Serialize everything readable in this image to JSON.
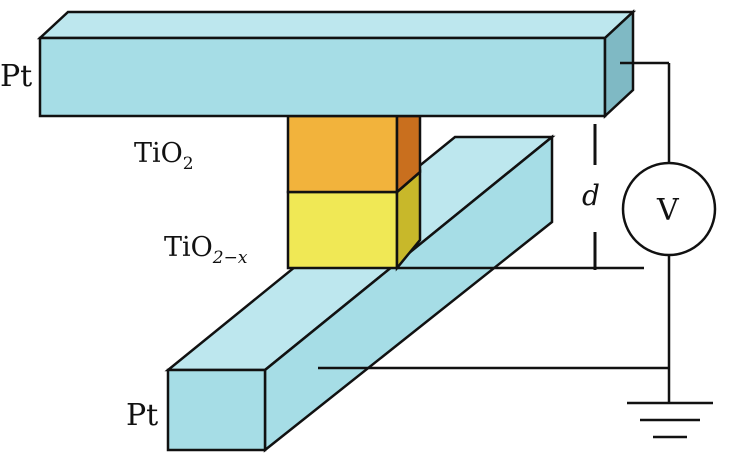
{
  "labels": {
    "top_electrode": "Pt",
    "bottom_electrode": "Pt",
    "upper_layer_main": "TiO",
    "upper_layer_sub": "2",
    "lower_layer_main": "TiO",
    "lower_layer_sub": "2−x",
    "distance": "d",
    "voltmeter": "V"
  },
  "colors": {
    "electrode_front": "#a6dde6",
    "electrode_top": "#bde7ee",
    "electrode_side": "#7fb9c4",
    "tio2": "#f2b33c",
    "tio2_side": "#c96f1e",
    "tio2x": "#f0e855",
    "tio2x_side": "#c8b82a",
    "wire": "#111111"
  },
  "icons": {
    "ground": "ground-symbol-icon",
    "meter": "voltmeter-circle-icon"
  }
}
